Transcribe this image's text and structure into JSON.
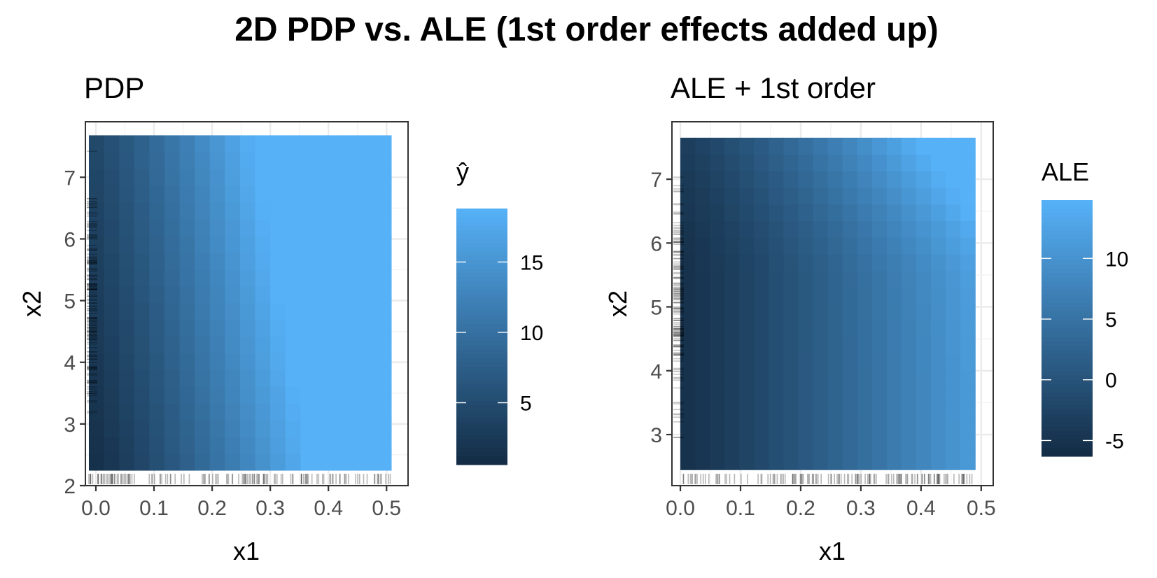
{
  "title": "2D PDP vs. ALE (1st order effects added up)",
  "colors": {
    "low": "#132B43",
    "high": "#56B1F7",
    "rug": "#000000"
  },
  "chart_data": [
    {
      "type": "heatmap",
      "title": "PDP",
      "xlabel": "x1",
      "ylabel": "x2",
      "xlim": [
        -0.018,
        0.537
      ],
      "ylim": [
        2.0,
        7.9
      ],
      "xticks": [
        "0.0",
        "0.1",
        "0.2",
        "0.3",
        "0.4",
        "0.5"
      ],
      "xtick_values": [
        0.0,
        0.1,
        0.2,
        0.3,
        0.4,
        0.5
      ],
      "yticks": [
        "2",
        "3",
        "4",
        "5",
        "6",
        "7"
      ],
      "ytick_values": [
        2,
        3,
        4,
        5,
        6,
        7
      ],
      "grid": true,
      "x_edges": [
        -0.012,
        0.508
      ],
      "y_edges": [
        2.25,
        7.68
      ],
      "nx": 20,
      "ny": 20,
      "surface": {
        "base": 1.0,
        "x_coef": 26.0,
        "x_pow": 1.2,
        "y_coef": 0.6,
        "xy_coef": 4.0
      },
      "value_range": [
        0.6,
        18.8
      ],
      "legend": {
        "title": "ŷ",
        "ticks": [
          "5",
          "10",
          "15"
        ],
        "tick_values": [
          5,
          10,
          15
        ],
        "position": "right"
      }
    },
    {
      "type": "heatmap",
      "title": "ALE + 1st order",
      "xlabel": "x1",
      "ylabel": "x2",
      "xlim": [
        -0.014,
        0.52
      ],
      "ylim": [
        2.2,
        7.9
      ],
      "xticks": [
        "0.0",
        "0.1",
        "0.2",
        "0.3",
        "0.4",
        "0.5"
      ],
      "xtick_values": [
        0.0,
        0.1,
        0.2,
        0.3,
        0.4,
        0.5
      ],
      "yticks": [
        "3",
        "4",
        "5",
        "6",
        "7"
      ],
      "ytick_values": [
        3,
        4,
        5,
        6,
        7
      ],
      "grid": true,
      "x_edges": [
        0.0,
        0.49
      ],
      "y_edges": [
        2.45,
        7.65
      ],
      "nx": 20,
      "ny": 20,
      "surface": {
        "base": -5.5,
        "x_coef": 17.0,
        "x_pow": 1.15,
        "y_coef": 0.0,
        "xy_coef": 0.0,
        "y_bump_start": 5.5,
        "y_bump_coef": 1.4,
        "y_bump_pow": 1.4,
        "corner_coef": 0.9
      },
      "value_range": [
        -6.3,
        14.8
      ],
      "legend": {
        "title": "ALE",
        "ticks": [
          "-5",
          "0",
          "5",
          "10"
        ],
        "tick_values": [
          -5,
          0,
          5,
          10
        ],
        "position": "right"
      }
    }
  ]
}
